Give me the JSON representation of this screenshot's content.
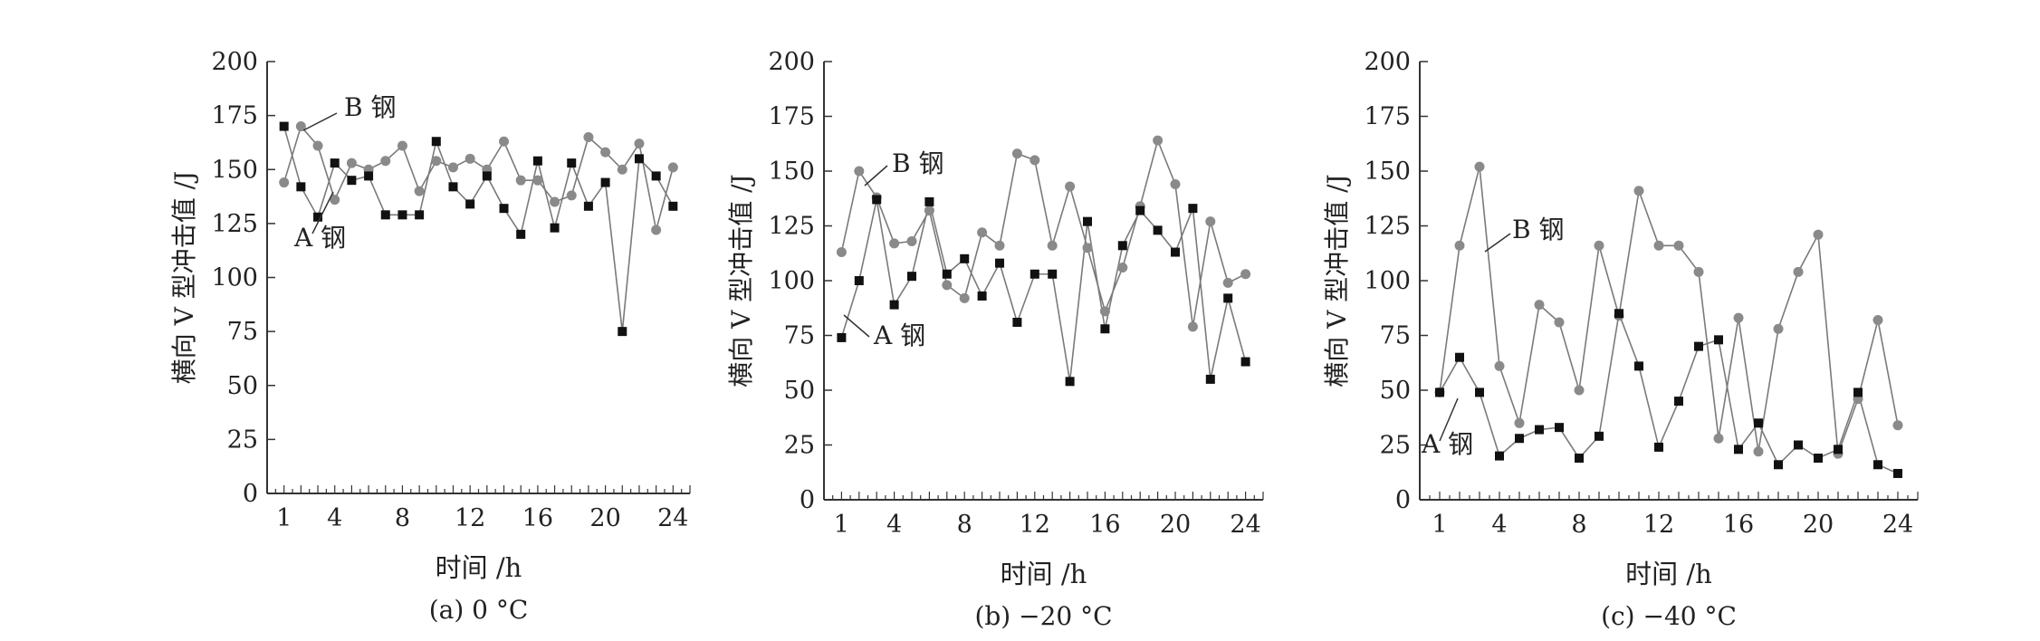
{
  "colors": {
    "axis": "#333333",
    "series_a": "#111111",
    "series_b": "#8a8a8a",
    "line": "#7a7a7a"
  },
  "chart_data": [
    {
      "type": "line",
      "caption": "(a) 0 °C",
      "xlabel": "时间 /h",
      "ylabel": "横向 V 型冲击值 /J",
      "ylim": [
        0,
        200
      ],
      "xlim": [
        0,
        25
      ],
      "xticks": [
        1,
        4,
        8,
        12,
        16,
        20,
        24
      ],
      "yticks": [
        0,
        25,
        50,
        75,
        100,
        125,
        150,
        175,
        200
      ],
      "grid": false,
      "series": [
        {
          "name": "A 钢",
          "marker": "square",
          "x": [
            1,
            2,
            3,
            4,
            5,
            6,
            7,
            8,
            9,
            10,
            11,
            12,
            13,
            14,
            15,
            16,
            17,
            18,
            19,
            20,
            21,
            22,
            23,
            24
          ],
          "values": [
            170,
            142,
            128,
            153,
            145,
            147,
            129,
            129,
            129,
            163,
            142,
            134,
            147,
            132,
            120,
            154,
            123,
            153,
            133,
            144,
            75,
            155,
            147,
            133
          ]
        },
        {
          "name": "B 钢",
          "marker": "circle",
          "x": [
            1,
            2,
            3,
            4,
            5,
            6,
            7,
            8,
            9,
            10,
            11,
            12,
            13,
            14,
            15,
            16,
            17,
            18,
            19,
            20,
            21,
            22,
            23,
            24
          ],
          "values": [
            144,
            170,
            161,
            136,
            153,
            150,
            154,
            161,
            140,
            154,
            151,
            155,
            150,
            163,
            145,
            145,
            135,
            138,
            165,
            158,
            150,
            162,
            122,
            151
          ]
        }
      ],
      "annotations": [
        "B 钢",
        "A 钢"
      ]
    },
    {
      "type": "line",
      "caption": "(b) −20 °C",
      "xlabel": "时间 /h",
      "ylabel": "横向 V 型冲击值 /J",
      "ylim": [
        0,
        200
      ],
      "xlim": [
        0,
        25
      ],
      "xticks": [
        1,
        4,
        8,
        12,
        16,
        20,
        24
      ],
      "yticks": [
        0,
        25,
        50,
        75,
        100,
        125,
        150,
        175,
        200
      ],
      "grid": false,
      "series": [
        {
          "name": "A 钢",
          "marker": "square",
          "x": [
            1,
            2,
            3,
            4,
            5,
            6,
            7,
            8,
            9,
            10,
            11,
            12,
            13,
            14,
            15,
            16,
            17,
            18,
            19,
            20,
            21,
            22,
            23,
            24
          ],
          "values": [
            74,
            100,
            137,
            89,
            102,
            136,
            103,
            110,
            93,
            108,
            81,
            103,
            103,
            54,
            127,
            78,
            116,
            132,
            123,
            113,
            133,
            55,
            92,
            63
          ]
        },
        {
          "name": "B 钢",
          "marker": "circle",
          "x": [
            1,
            2,
            3,
            4,
            5,
            6,
            7,
            8,
            9,
            10,
            11,
            12,
            13,
            14,
            15,
            16,
            17,
            18,
            19,
            20,
            21,
            22,
            23,
            24
          ],
          "values": [
            113,
            150,
            138,
            117,
            118,
            132,
            98,
            92,
            122,
            116,
            158,
            155,
            116,
            143,
            115,
            86,
            106,
            134,
            164,
            144,
            79,
            127,
            99,
            103
          ]
        }
      ],
      "annotations": [
        "B 钢",
        "A 钢"
      ]
    },
    {
      "type": "line",
      "caption": "(c) −40 °C",
      "xlabel": "时间 /h",
      "ylabel": "横向 V 型冲击值 /J",
      "ylim": [
        0,
        200
      ],
      "xlim": [
        0,
        25
      ],
      "xticks": [
        1,
        4,
        8,
        12,
        16,
        20,
        24
      ],
      "yticks": [
        0,
        25,
        50,
        75,
        100,
        125,
        150,
        175,
        200
      ],
      "grid": false,
      "series": [
        {
          "name": "A 钢",
          "marker": "square",
          "x": [
            1,
            2,
            3,
            4,
            5,
            6,
            7,
            8,
            9,
            10,
            11,
            12,
            13,
            14,
            15,
            16,
            17,
            18,
            19,
            20,
            21,
            22,
            23,
            24
          ],
          "values": [
            49,
            65,
            49,
            20,
            28,
            32,
            33,
            19,
            29,
            85,
            61,
            24,
            45,
            70,
            73,
            23,
            35,
            16,
            25,
            19,
            23,
            49,
            16,
            12
          ]
        },
        {
          "name": "B 钢",
          "marker": "circle",
          "x": [
            1,
            2,
            3,
            4,
            5,
            6,
            7,
            8,
            9,
            10,
            11,
            12,
            13,
            14,
            15,
            16,
            17,
            18,
            19,
            20,
            21,
            22,
            23,
            24
          ],
          "values": [
            49,
            116,
            152,
            61,
            35,
            89,
            81,
            50,
            116,
            84,
            141,
            116,
            116,
            104,
            28,
            83,
            22,
            78,
            104,
            121,
            21,
            46,
            82,
            34
          ]
        }
      ],
      "annotations": [
        "B 钢",
        "A 钢"
      ]
    }
  ]
}
